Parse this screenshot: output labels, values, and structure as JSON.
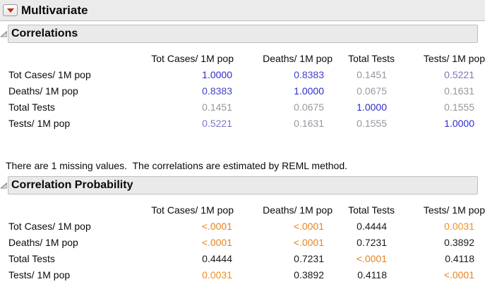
{
  "app": {
    "title": "Multivariate"
  },
  "icons": {
    "red_triangle": "red-triangle-menu-icon",
    "disclosure_open": "disclosure-triangle-open-icon"
  },
  "colors": {
    "strong_positive_blue": "#2B2BCD",
    "moderate_blue": "#7B79C0",
    "weak_gray": "#98959F",
    "significant_orange": "#E8821E",
    "nonsignificant_black": "#1B1B1B",
    "header_bar_bg": "#EAEAEA",
    "top_bar_bg": "#EBEBEB"
  },
  "correlations": {
    "title": "Correlations",
    "columns": [
      "Tot Cases/ 1M pop",
      "Deaths/ 1M pop",
      "Total Tests",
      "Tests/ 1M pop"
    ],
    "rows": [
      {
        "label": "Tot Cases/ 1M pop",
        "cells": [
          {
            "text": "1.0000",
            "color": "#2B2BCD"
          },
          {
            "text": "0.8383",
            "color": "#4343CC"
          },
          {
            "text": "0.1451",
            "color": "#98959F"
          },
          {
            "text": "0.5221",
            "color": "#7B79C0"
          }
        ]
      },
      {
        "label": "Deaths/ 1M pop",
        "cells": [
          {
            "text": "0.8383",
            "color": "#4343CC"
          },
          {
            "text": "1.0000",
            "color": "#2B2BCD"
          },
          {
            "text": "0.0675",
            "color": "#9C99A3"
          },
          {
            "text": "0.1631",
            "color": "#98959F"
          }
        ]
      },
      {
        "label": "Total Tests",
        "cells": [
          {
            "text": "0.1451",
            "color": "#98959F"
          },
          {
            "text": "0.0675",
            "color": "#9C99A3"
          },
          {
            "text": "1.0000",
            "color": "#2B2BCD"
          },
          {
            "text": "0.1555",
            "color": "#98959F"
          }
        ]
      },
      {
        "label": "Tests/ 1M pop",
        "cells": [
          {
            "text": "0.5221",
            "color": "#7B79C0"
          },
          {
            "text": "0.1631",
            "color": "#98959F"
          },
          {
            "text": "0.1555",
            "color": "#98959F"
          },
          {
            "text": "1.0000",
            "color": "#2B2BCD"
          }
        ]
      }
    ]
  },
  "note": "There are 1 missing values.  The correlations are estimated by REML method.",
  "probability": {
    "title": "Correlation Probability",
    "columns": [
      "Tot Cases/ 1M pop",
      "Deaths/ 1M pop",
      "Total Tests",
      "Tests/ 1M pop"
    ],
    "rows": [
      {
        "label": "Tot Cases/ 1M pop",
        "cells": [
          {
            "text": "<.0001",
            "color": "#E8821E"
          },
          {
            "text": "<.0001",
            "color": "#E8821E"
          },
          {
            "text": "0.4444",
            "color": "#1B1B1B"
          },
          {
            "text": "0.0031",
            "color": "#EE9126"
          }
        ]
      },
      {
        "label": "Deaths/ 1M pop",
        "cells": [
          {
            "text": "<.0001",
            "color": "#E8821E"
          },
          {
            "text": "<.0001",
            "color": "#E8821E"
          },
          {
            "text": "0.7231",
            "color": "#1B1B1B"
          },
          {
            "text": "0.3892",
            "color": "#1B1B1B"
          }
        ]
      },
      {
        "label": "Total Tests",
        "cells": [
          {
            "text": "0.4444",
            "color": "#1B1B1B"
          },
          {
            "text": "0.7231",
            "color": "#1B1B1B"
          },
          {
            "text": "<.0001",
            "color": "#E8821E"
          },
          {
            "text": "0.4118",
            "color": "#1B1B1B"
          }
        ]
      },
      {
        "label": "Tests/ 1M pop",
        "cells": [
          {
            "text": "0.0031",
            "color": "#EE9126"
          },
          {
            "text": "0.3892",
            "color": "#1B1B1B"
          },
          {
            "text": "0.4118",
            "color": "#1B1B1B"
          },
          {
            "text": "<.0001",
            "color": "#E8821E"
          }
        ]
      }
    ]
  }
}
